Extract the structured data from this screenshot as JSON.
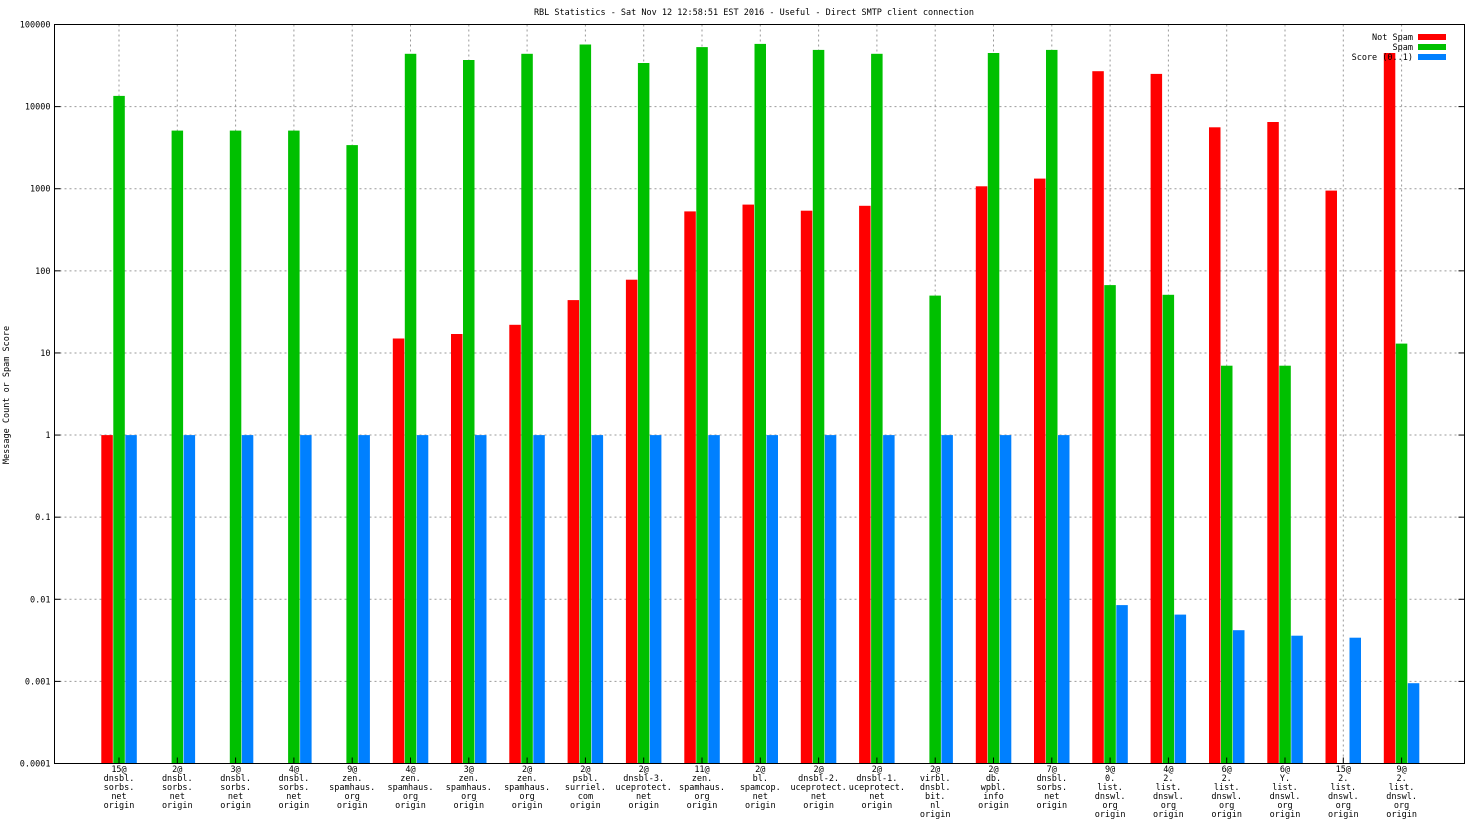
{
  "chart_data": {
    "type": "bar",
    "title": "RBL Statistics - Sat Nov 12 12:58:51 EST 2016 - Useful - Direct SMTP client connection",
    "ylabel": "Message Count or Spam Score",
    "xlabel": "",
    "yscale": "log",
    "ylim": [
      0.0001,
      100000
    ],
    "yticks": [
      "0.0001",
      "0.001",
      "0.01",
      "0.1",
      "1",
      "10",
      "100",
      "1000",
      "10000",
      "100000"
    ],
    "grid": true,
    "legend_position": "top-right",
    "categories": [
      "15@ dnsbl. sorbs. net origin",
      "2@ dnsbl. sorbs. net origin",
      "3@ dnsbl. sorbs. net origin",
      "4@ dnsbl. sorbs. net origin",
      "9@ zen. spamhaus. org origin",
      "4@ zen. spamhaus. org origin",
      "3@ zen. spamhaus. org origin",
      "2@ zen. spamhaus. org origin",
      "2@ psbl. surriel. com origin",
      "2@ dnsbl-3. uceprotect. net origin",
      "11@ zen. spamhaus. org origin",
      "2@ bl. spamcop. net origin",
      "2@ dnsbl-2. uceprotect. net origin",
      "2@ dnsbl-1. uceprotect. net origin",
      "2@ virbl. dnsbl. bit. nl origin",
      "2@ db. wpbl. info origin",
      "7@ dnsbl. sorbs. net origin",
      "9@ 0. list. dnswl. org origin",
      "4@ 2. list. dnswl. org origin",
      "6@ 2. list. dnswl. org origin",
      "6@ Y. list. dnswl. org origin",
      "15@ 2. list. dnswl. org origin",
      "9@ 2. list. dnswl. org origin"
    ],
    "series": [
      {
        "name": "Not Spam",
        "color": "#ff0000",
        "values": [
          1,
          null,
          null,
          null,
          null,
          15,
          17,
          22,
          44,
          78,
          530,
          640,
          540,
          620,
          null,
          1070,
          1330,
          27000,
          25000,
          5600,
          6500,
          950,
          45000
        ]
      },
      {
        "name": "Spam",
        "color": "#00c000",
        "values": [
          13500,
          5100,
          5100,
          5100,
          3400,
          44000,
          37000,
          44000,
          57000,
          34000,
          53000,
          58000,
          49000,
          44000,
          50,
          45000,
          49000,
          67,
          51,
          7,
          7,
          null,
          13
        ]
      },
      {
        "name": "Score (0..1)",
        "color": "#0080ff",
        "values": [
          1,
          1,
          1,
          1,
          1,
          1,
          1,
          1,
          1,
          1,
          1,
          1,
          1,
          1,
          1,
          1,
          1,
          0.0085,
          0.0065,
          0.0042,
          0.0036,
          0.0034,
          0.00095
        ]
      }
    ]
  }
}
